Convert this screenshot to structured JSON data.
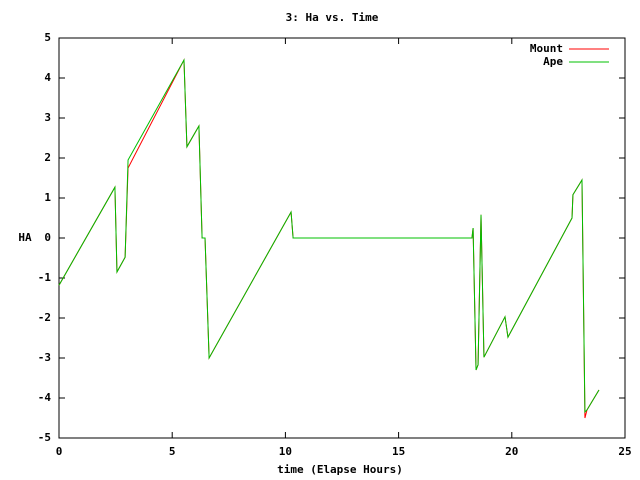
{
  "chart_data": {
    "type": "line",
    "title": "3: Ha vs. Time",
    "x_label": "time (Elapse Hours)",
    "y_label": "HA",
    "x": [
      0,
      2.47,
      2.56,
      2.92,
      3.05,
      5.52,
      5.65,
      6.18,
      6.32,
      6.45,
      6.63,
      10.25,
      10.34,
      18.24,
      18.29,
      18.42,
      18.51,
      18.64,
      18.77,
      19.7,
      19.83,
      22.66,
      22.7,
      23.1,
      23.23,
      23.32,
      23.85
    ],
    "series": [
      {
        "name": "Mount",
        "color": "#ff0000",
        "values": [
          -1.18,
          1.27,
          -0.85,
          -0.48,
          1.75,
          4.45,
          2.28,
          2.8,
          0,
          0,
          -3.0,
          0.65,
          0,
          0,
          0.25,
          -3.3,
          -3.17,
          0.58,
          -2.98,
          -1.97,
          -2.48,
          0.5,
          1.08,
          1.45,
          -4.5,
          -4.3,
          -3.8
        ]
      },
      {
        "name": "Ape",
        "color": "#00c000",
        "values": [
          -1.18,
          1.27,
          -0.85,
          -0.48,
          1.95,
          4.45,
          2.28,
          2.8,
          0,
          0,
          -3.0,
          0.65,
          0,
          0,
          0.25,
          -3.3,
          -3.17,
          0.58,
          -2.98,
          -1.97,
          -2.48,
          0.5,
          1.08,
          1.45,
          -4.35,
          -4.3,
          -3.8
        ]
      }
    ],
    "xlim": [
      0,
      25
    ],
    "xticks": [
      0,
      5,
      10,
      15,
      20,
      25
    ],
    "ylim": [
      -5,
      5
    ],
    "yticks": [
      -5,
      -4,
      -3,
      -2,
      -1,
      0,
      1,
      2,
      3,
      4,
      5
    ],
    "grid": false,
    "legend": "upper right"
  }
}
